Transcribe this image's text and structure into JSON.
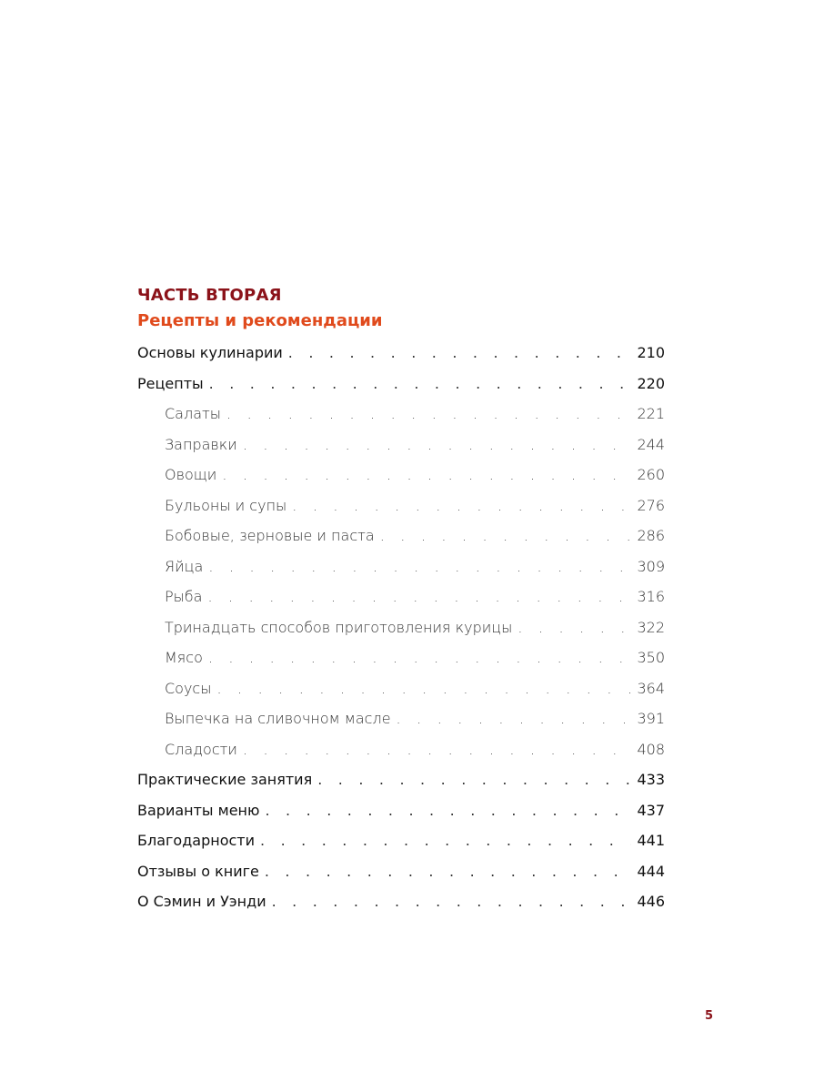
{
  "part_title": "ЧАСТЬ ВТОРАЯ",
  "part_subtitle": "Рецепты и рекомендации",
  "colors": {
    "part_title": "#8b1219",
    "part_subtitle": "#e04a1c",
    "folio": "#8b1219"
  },
  "toc": [
    {
      "label": "Основы кулинарии",
      "page": "210",
      "level": 1
    },
    {
      "label": "Рецепты",
      "page": "220",
      "level": 1
    },
    {
      "label": "Салаты",
      "page": "221",
      "level": 2
    },
    {
      "label": "Заправки",
      "page": "244",
      "level": 2
    },
    {
      "label": "Овощи",
      "page": "260",
      "level": 2
    },
    {
      "label": "Бульоны и супы",
      "page": "276",
      "level": 2
    },
    {
      "label": "Бобовые, зерновые и паста",
      "page": "286",
      "level": 2
    },
    {
      "label": "Яйца",
      "page": "309",
      "level": 2
    },
    {
      "label": "Рыба",
      "page": "316",
      "level": 2
    },
    {
      "label": "Тринадцать способов приготовления курицы",
      "page": "322",
      "level": 2
    },
    {
      "label": "Мясо",
      "page": "350",
      "level": 2
    },
    {
      "label": "Соусы",
      "page": "364",
      "level": 2
    },
    {
      "label": "Выпечка на сливочном масле",
      "page": "391",
      "level": 2
    },
    {
      "label": "Сладости",
      "page": "408",
      "level": 2
    },
    {
      "label": "Практические занятия",
      "page": "433",
      "level": 1
    },
    {
      "label": "Варианты меню",
      "page": "437",
      "level": 1
    },
    {
      "label": "Благодарности",
      "page": "441",
      "level": 1
    },
    {
      "label": "Отзывы о книге",
      "page": "444",
      "level": 1
    },
    {
      "label": "О Сэмин и Уэнди",
      "page": "446",
      "level": 1
    }
  ],
  "folio": "5"
}
